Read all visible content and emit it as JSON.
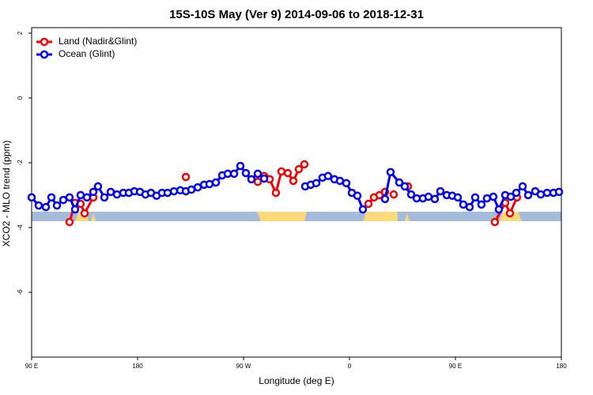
{
  "chart_data": {
    "type": "line",
    "title": "15S-10S May (Ver 9)   2014-09-06 to 2018-12-31",
    "x_label": "Longitude (deg E)",
    "y_label": "XCO2 - MLO trend (ppm)",
    "xlim": [
      90,
      540
    ],
    "xticks": [
      {
        "value": 90,
        "label": "90 E"
      },
      180,
      {
        "value": 270,
        "label": "90 W"
      },
      {
        "value": 360,
        "label": "0"
      },
      {
        "value": 450,
        "label": "90 E"
      },
      {
        "value": 540,
        "label": "180"
      }
    ],
    "ylim": [
      -8,
      2.17
    ],
    "yticks": [
      2,
      0,
      -2,
      -4,
      -6
    ],
    "legend": "top-left",
    "series": [
      {
        "name": "Land (Nadir&Glint)",
        "color": "#ee0000",
        "x": [
          122.2,
          126.9,
          131.6,
          135.0,
          142.4,
          180,
          221.0,
          250,
          282.1,
          287.5,
          292.2,
          297.5,
          302.2,
          307.6,
          312.3,
          317.0,
          321.7,
          350,
          376.1,
          380.8,
          385.5,
          390.2,
          394,
          397.6,
          404,
          409.7,
          450,
          483.5,
          492.3,
          496.3,
          502.3
        ],
        "values": [
          -3.83,
          -3.24,
          -3.27,
          -3.56,
          -3.07,
          null,
          -2.44,
          null,
          -2.59,
          -2.41,
          -2.51,
          -2.93,
          -2.27,
          -2.32,
          -2.56,
          -2.2,
          -2.05,
          null,
          -3.27,
          -3.07,
          -3.0,
          -2.9,
          null,
          -2.98,
          null,
          -2.73,
          null,
          -3.83,
          -3.24,
          -3.56,
          -3.07
        ]
      },
      {
        "name": "Ocean (Glint)",
        "color": "#0000ee",
        "x": [
          90,
          96.0,
          102.1,
          106.8,
          111.5,
          116.9,
          122.2,
          126.9,
          131.6,
          137.0,
          142.4,
          146.4,
          151.8,
          157.2,
          162.5,
          167.9,
          172.6,
          177.3,
          182.0,
          186.7,
          191.4,
          196.1,
          200.8,
          205.5,
          210.9,
          216.3,
          221.0,
          225.7,
          231.1,
          236.5,
          241.1,
          246.5,
          251.9,
          256.6,
          262.0,
          267.3,
          272.0,
          276.7,
          282.1,
          287.5,
          305,
          322.4,
          327.1,
          331.8,
          337.1,
          341.8,
          347.2,
          351.9,
          357.3,
          362.0,
          366.7,
          371.4,
          380,
          390.2,
          394.9,
          402.3,
          407.0,
          412.4,
          417.1,
          422.4,
          427.1,
          432.5,
          437.2,
          442.6,
          447.3,
          452.0,
          456.7,
          462.1,
          466.8,
          472.1,
          476.8,
          482.2,
          486.9,
          492.3,
          497.0,
          501.7,
          507.1,
          511.8,
          517.8,
          522.5,
          527.9,
          533.3,
          538.0
        ],
        "values": [
          -3.07,
          -3.32,
          -3.37,
          -3.07,
          -3.32,
          -3.15,
          -3.07,
          -3.44,
          -3.0,
          -3.07,
          -2.9,
          -2.73,
          -3.07,
          -2.9,
          -2.98,
          -2.93,
          -2.93,
          -2.88,
          -2.9,
          -2.98,
          -2.93,
          -3.02,
          -2.93,
          -2.93,
          -2.88,
          -2.85,
          -2.88,
          -2.83,
          -2.76,
          -2.68,
          -2.66,
          -2.61,
          -2.39,
          -2.34,
          -2.34,
          -2.1,
          -2.32,
          -2.51,
          -2.34,
          -2.49,
          null,
          -2.73,
          -2.68,
          -2.63,
          -2.46,
          -2.41,
          -2.51,
          -2.56,
          -2.63,
          -2.93,
          -3.02,
          -3.44,
          null,
          -3.12,
          -2.29,
          -2.61,
          -2.73,
          -2.98,
          -3.1,
          -3.1,
          -3.05,
          -3.12,
          -2.88,
          -3.0,
          -3.02,
          -3.07,
          -3.29,
          -3.37,
          -3.07,
          -3.29,
          -3.1,
          -3.05,
          -3.44,
          -3.0,
          -3.05,
          -2.93,
          -2.73,
          -3.0,
          -2.88,
          -2.98,
          -2.93,
          -2.93,
          -2.9
        ]
      }
    ]
  }
}
